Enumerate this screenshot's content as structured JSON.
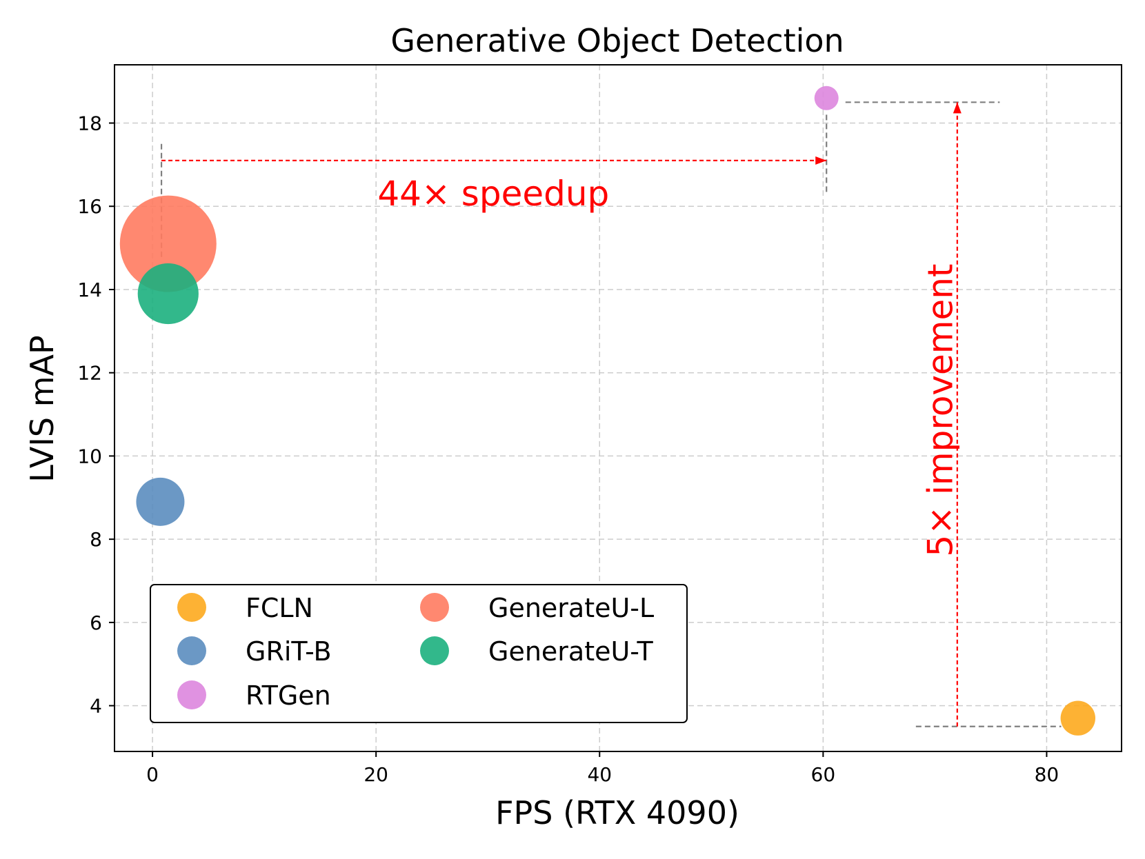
{
  "chart_data": {
    "type": "scatter",
    "title": "Generative Object Detection",
    "xlabel": "FPS (RTX 4090)",
    "ylabel": "LVIS mAP",
    "xlim": [
      -3.4,
      86.7
    ],
    "ylim": [
      2.9,
      19.4
    ],
    "xticks": [
      0,
      20,
      40,
      60,
      80
    ],
    "yticks": [
      4,
      6,
      8,
      10,
      12,
      14,
      16,
      18
    ],
    "grid": true,
    "series": [
      {
        "name": "FCLN",
        "x": 82.8,
        "y": 3.7,
        "color": "#FDAA1E",
        "size": 0.36
      },
      {
        "name": "GRiT-B",
        "x": 0.7,
        "y": 8.9,
        "color": "#5B8DBF",
        "size": 0.5
      },
      {
        "name": "RTGen",
        "x": 60.3,
        "y": 18.6,
        "color": "#DD86DE",
        "size": 0.25
      },
      {
        "name": "GenerateU-L",
        "x": 1.4,
        "y": 15.1,
        "color": "#FF7B61",
        "size": 1.0
      },
      {
        "name": "GenerateU-T",
        "x": 1.4,
        "y": 13.9,
        "color": "#1CB07E",
        "size": 0.63
      }
    ],
    "legend": {
      "position": "lower-left",
      "columns": 2,
      "entries": [
        "FCLN",
        "GRiT-B",
        "RTGen",
        "GenerateU-L",
        "GenerateU-T"
      ]
    },
    "annotations": [
      {
        "text": "44× speedup",
        "color": "#FF0000",
        "from": [
          0.8,
          17.1
        ],
        "to": [
          60.3,
          17.1
        ],
        "label_at": [
          30.5,
          16.3
        ]
      },
      {
        "text": "5× improvement",
        "color": "#FF0000",
        "from": [
          72.0,
          3.5
        ],
        "to": [
          72.0,
          18.5
        ],
        "label_at": [
          70.5,
          11.1
        ],
        "rotated": true
      }
    ]
  }
}
